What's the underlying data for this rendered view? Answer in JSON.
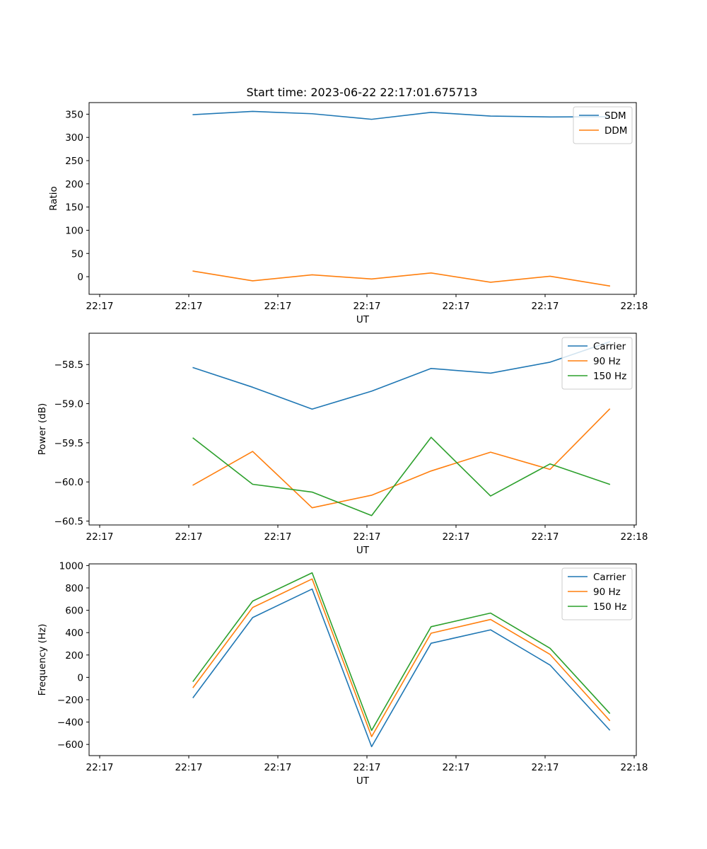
{
  "figure": {
    "title": "Start time: 2023-06-22 22:17:01.675713"
  },
  "chart_data": [
    {
      "type": "line",
      "title": "Start time: 2023-06-22 22:17:01.675713",
      "xlabel": "UT",
      "ylabel": "Ratio",
      "x_tick_labels": [
        "22:17",
        "22:17",
        "22:17",
        "22:17",
        "22:17",
        "22:17",
        "22:18"
      ],
      "x_index": [
        1,
        2,
        3,
        4,
        5,
        6,
        7,
        8
      ],
      "xlim": [
        -0.75,
        8.45
      ],
      "ylim": [
        -38,
        375
      ],
      "y_ticks": [
        0,
        50,
        100,
        150,
        200,
        250,
        300,
        350
      ],
      "legend_position": "upper right",
      "grid": false,
      "series": [
        {
          "name": "SDM",
          "color": "#1f77b4",
          "values": [
            349,
            356,
            351,
            339,
            354,
            346,
            344,
            344.5
          ]
        },
        {
          "name": "DDM",
          "color": "#ff7f0e",
          "values": [
            12,
            -9,
            4,
            -5,
            8,
            -12,
            1,
            -20
          ]
        }
      ]
    },
    {
      "type": "line",
      "title": "",
      "xlabel": "UT",
      "ylabel": "Power (dB)",
      "x_tick_labels": [
        "22:17",
        "22:17",
        "22:17",
        "22:17",
        "22:17",
        "22:17",
        "22:18"
      ],
      "x_index": [
        1,
        2,
        3,
        4,
        5,
        6,
        7,
        8
      ],
      "xlim": [
        -0.75,
        8.45
      ],
      "ylim": [
        -60.55,
        -58.1
      ],
      "y_ticks": [
        -60.5,
        -60.0,
        -59.5,
        -59.0,
        -58.5
      ],
      "y_tick_labels": [
        "−60.5",
        "−60.0",
        "−59.5",
        "−59.0",
        "−58.5"
      ],
      "legend_position": "upper right",
      "grid": false,
      "series": [
        {
          "name": "Carrier",
          "color": "#1f77b4",
          "values": [
            -58.54,
            -58.79,
            -59.07,
            -58.84,
            -58.55,
            -58.61,
            -58.47,
            -58.21
          ]
        },
        {
          "name": "90 Hz",
          "color": "#ff7f0e",
          "values": [
            -60.04,
            -59.61,
            -60.33,
            -60.17,
            -59.86,
            -59.62,
            -59.84,
            -59.07
          ]
        },
        {
          "name": "150 Hz",
          "color": "#2ca02c",
          "values": [
            -59.44,
            -60.03,
            -60.13,
            -60.43,
            -59.43,
            -60.18,
            -59.77,
            -60.03
          ]
        }
      ]
    },
    {
      "type": "line",
      "title": "",
      "xlabel": "UT",
      "ylabel": "Frequency (Hz)",
      "x_tick_labels": [
        "22:17",
        "22:17",
        "22:17",
        "22:17",
        "22:17",
        "22:17",
        "22:18"
      ],
      "x_index": [
        1,
        2,
        3,
        4,
        5,
        6,
        7,
        8
      ],
      "xlim": [
        -0.75,
        8.45
      ],
      "ylim": [
        -700,
        1015
      ],
      "y_ticks": [
        -600,
        -400,
        -200,
        0,
        200,
        400,
        600,
        800,
        1000
      ],
      "y_tick_labels": [
        "−600",
        "−400",
        "−200",
        "0",
        "200",
        "400",
        "600",
        "800",
        "1000"
      ],
      "legend_position": "upper right",
      "grid": false,
      "series": [
        {
          "name": "Carrier",
          "color": "#1f77b4",
          "values": [
            -180,
            535,
            790,
            -620,
            305,
            425,
            110,
            -470
          ]
        },
        {
          "name": "90 Hz",
          "color": "#ff7f0e",
          "values": [
            -90,
            625,
            880,
            -530,
            395,
            518,
            205,
            -385
          ]
        },
        {
          "name": "150 Hz",
          "color": "#2ca02c",
          "values": [
            -35,
            682,
            935,
            -475,
            453,
            575,
            260,
            -320
          ]
        }
      ]
    }
  ]
}
